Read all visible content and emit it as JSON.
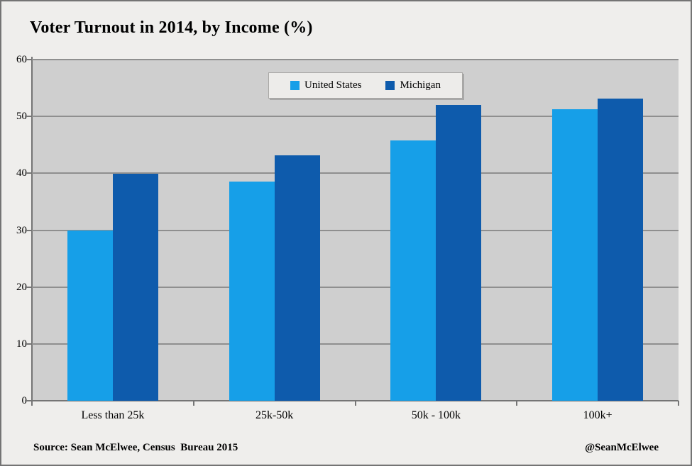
{
  "title": "Voter Turnout in 2014, by Income (%)",
  "chart_data": {
    "type": "bar",
    "title": "Voter Turnout in 2014, by Income (%)",
    "categories": [
      "Less than 25k",
      "25k-50k",
      "50k - 100k",
      "100k+"
    ],
    "series": [
      {
        "name": "United States",
        "color_key": "us",
        "values": [
          29.9,
          38.5,
          45.8,
          51.3
        ]
      },
      {
        "name": "Michigan",
        "color_key": "michigan",
        "values": [
          39.9,
          43.1,
          52.0,
          53.1
        ]
      }
    ],
    "xlabel": "",
    "ylabel": "",
    "ylim": [
      0,
      60
    ],
    "y_ticks": [
      0,
      10,
      20,
      30,
      40,
      50,
      60
    ],
    "grid": true,
    "legend_position": "top-center"
  },
  "colors": {
    "us": "#169FE8",
    "michigan": "#0E5BAC",
    "plot_bg": "#CFCFCF",
    "gridline": "#8F8F8F",
    "axis": "#757575",
    "canvas_bg": "#EFEEEC"
  },
  "footer": {
    "source": "Source: Sean McElwee, Census  Bureau 2015",
    "handle": "@SeanMcElwee"
  }
}
